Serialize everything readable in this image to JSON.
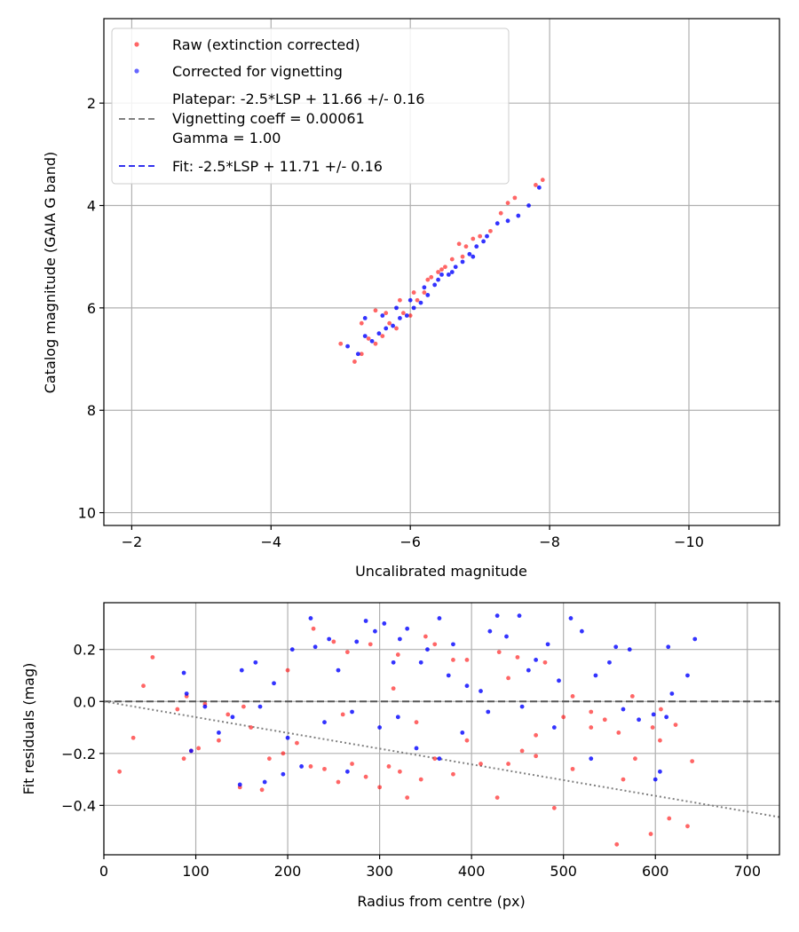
{
  "chart_data": [
    {
      "type": "scatter",
      "title": "",
      "xlabel": "Uncalibrated magnitude",
      "ylabel": "Catalog magnitude (GAIA G band)",
      "xlim": [
        -1.6,
        -11.3
      ],
      "ylim": [
        10.25,
        0.35
      ],
      "x_inverted": true,
      "y_inverted": true,
      "xticks": [
        -2,
        -4,
        -6,
        -8,
        -10
      ],
      "yticks": [
        2,
        4,
        6,
        8,
        10
      ],
      "xtick_labels": [
        "−2",
        "−4",
        "−6",
        "−8",
        "−10"
      ],
      "ytick_labels": [
        "2",
        "4",
        "6",
        "8",
        "10"
      ],
      "grid": true,
      "legend_position": "top-left",
      "legend": {
        "raw": "Raw (extinction corrected)",
        "vig": "Corrected for vignetting",
        "platepar_lines": [
          "Platepar: -2.5*LSP + 11.66 +/- 0.16",
          "Vignetting coeff = 0.00061",
          "Gamma = 1.00"
        ],
        "fit": "Fit: -2.5*LSP + 11.71 +/- 0.16"
      },
      "colors": {
        "raw": "#ff0000",
        "vig": "#0000ff",
        "platepar_line": "#808080",
        "fit_line": "#3333ee"
      },
      "lines": [
        {
          "name": "Platepar: -2.5*LSP + 11.66 +/- 0.16",
          "slope": -1,
          "intercept": -11.66
        },
        {
          "name": "Fit: -2.5*LSP + 11.71 +/- 0.16",
          "slope": -1,
          "intercept": -11.71
        }
      ],
      "series": [
        {
          "name": "Raw (extinction corrected)",
          "points": [
            [
              -5.0,
              6.7
            ],
            [
              -5.2,
              7.05
            ],
            [
              -5.3,
              6.9
            ],
            [
              -5.4,
              6.6
            ],
            [
              -5.5,
              6.7
            ],
            [
              -5.6,
              6.55
            ],
            [
              -5.7,
              6.3
            ],
            [
              -5.8,
              6.4
            ],
            [
              -5.9,
              6.1
            ],
            [
              -6.0,
              6.15
            ],
            [
              -6.1,
              5.85
            ],
            [
              -6.2,
              5.7
            ],
            [
              -6.3,
              5.4
            ],
            [
              -6.4,
              5.3
            ],
            [
              -6.5,
              5.2
            ],
            [
              -6.6,
              5.05
            ],
            [
              -6.7,
              4.75
            ],
            [
              -6.8,
              4.8
            ],
            [
              -6.9,
              4.65
            ],
            [
              -7.0,
              4.6
            ],
            [
              -7.3,
              4.15
            ],
            [
              -7.5,
              3.85
            ],
            [
              -7.8,
              3.6
            ],
            [
              -7.9,
              3.5
            ],
            [
              -5.3,
              6.3
            ],
            [
              -5.5,
              6.05
            ],
            [
              -5.65,
              6.1
            ],
            [
              -5.85,
              5.85
            ],
            [
              -6.05,
              5.7
            ],
            [
              -6.25,
              5.45
            ],
            [
              -6.45,
              5.25
            ],
            [
              -6.75,
              5.0
            ],
            [
              -7.15,
              4.5
            ],
            [
              -7.4,
              3.95
            ]
          ]
        },
        {
          "name": "Corrected for vignetting",
          "points": [
            [
              -5.1,
              6.75
            ],
            [
              -5.25,
              6.9
            ],
            [
              -5.35,
              6.55
            ],
            [
              -5.45,
              6.65
            ],
            [
              -5.55,
              6.5
            ],
            [
              -5.65,
              6.4
            ],
            [
              -5.75,
              6.35
            ],
            [
              -5.85,
              6.2
            ],
            [
              -5.95,
              6.15
            ],
            [
              -6.05,
              6.0
            ],
            [
              -6.15,
              5.9
            ],
            [
              -6.25,
              5.75
            ],
            [
              -6.35,
              5.55
            ],
            [
              -6.45,
              5.35
            ],
            [
              -6.55,
              5.35
            ],
            [
              -6.65,
              5.2
            ],
            [
              -6.75,
              5.1
            ],
            [
              -6.85,
              4.95
            ],
            [
              -6.95,
              4.8
            ],
            [
              -7.05,
              4.7
            ],
            [
              -7.25,
              4.35
            ],
            [
              -7.55,
              4.2
            ],
            [
              -7.7,
              4.0
            ],
            [
              -7.85,
              3.65
            ],
            [
              -5.35,
              6.2
            ],
            [
              -5.6,
              6.15
            ],
            [
              -5.8,
              6.0
            ],
            [
              -6.0,
              5.85
            ],
            [
              -6.2,
              5.6
            ],
            [
              -6.4,
              5.45
            ],
            [
              -6.6,
              5.3
            ],
            [
              -6.9,
              5.0
            ],
            [
              -7.1,
              4.6
            ],
            [
              -7.4,
              4.3
            ]
          ]
        }
      ]
    },
    {
      "type": "scatter",
      "title": "",
      "xlabel": "Radius from centre (px)",
      "ylabel": "Fit residuals (mag)",
      "xlim": [
        0,
        735
      ],
      "ylim": [
        -0.59,
        0.38
      ],
      "xticks": [
        0,
        100,
        200,
        300,
        400,
        500,
        600,
        700
      ],
      "yticks": [
        0.2,
        0.0,
        -0.2,
        -0.4
      ],
      "xtick_labels": [
        "0",
        "100",
        "200",
        "300",
        "400",
        "500",
        "600",
        "700"
      ],
      "ytick_labels": [
        "0.2",
        "0.0",
        "−0.2",
        "−0.4"
      ],
      "grid": true,
      "colors": {
        "raw": "#ff0000",
        "vig": "#0000ff",
        "zero_line": "#555555",
        "trend_line": "#808080"
      },
      "lines": [
        {
          "name": "zero",
          "style": "dashed",
          "points": [
            [
              0,
              0.0
            ],
            [
              735,
              0.0
            ]
          ]
        },
        {
          "name": "vignetting trend",
          "style": "dotted",
          "points": [
            [
              0,
              0.0
            ],
            [
              735,
              -0.445
            ]
          ]
        }
      ],
      "series": [
        {
          "name": "Raw (extinction corrected)",
          "points": [
            [
              17,
              -0.27
            ],
            [
              32,
              -0.14
            ],
            [
              43,
              0.06
            ],
            [
              53,
              0.17
            ],
            [
              80,
              -0.03
            ],
            [
              87,
              -0.22
            ],
            [
              90,
              0.02
            ],
            [
              95,
              -0.19
            ],
            [
              103,
              -0.18
            ],
            [
              110,
              -0.01
            ],
            [
              125,
              -0.15
            ],
            [
              135,
              -0.05
            ],
            [
              148,
              -0.33
            ],
            [
              152,
              -0.02
            ],
            [
              160,
              -0.1
            ],
            [
              172,
              -0.34
            ],
            [
              180,
              -0.22
            ],
            [
              195,
              -0.2
            ],
            [
              210,
              -0.16
            ],
            [
              225,
              -0.25
            ],
            [
              240,
              -0.26
            ],
            [
              255,
              -0.31
            ],
            [
              270,
              -0.24
            ],
            [
              285,
              -0.29
            ],
            [
              300,
              -0.33
            ],
            [
              310,
              -0.25
            ],
            [
              322,
              -0.27
            ],
            [
              330,
              -0.37
            ],
            [
              345,
              -0.3
            ],
            [
              360,
              -0.22
            ],
            [
              380,
              -0.28
            ],
            [
              395,
              -0.15
            ],
            [
              410,
              -0.24
            ],
            [
              428,
              -0.37
            ],
            [
              440,
              -0.24
            ],
            [
              455,
              -0.19
            ],
            [
              470,
              -0.21
            ],
            [
              490,
              -0.41
            ],
            [
              510,
              -0.26
            ],
            [
              530,
              -0.1
            ],
            [
              545,
              -0.07
            ],
            [
              558,
              -0.55
            ],
            [
              565,
              -0.3
            ],
            [
              578,
              -0.22
            ],
            [
              595,
              -0.51
            ],
            [
              605,
              -0.15
            ],
            [
              615,
              -0.45
            ],
            [
              635,
              -0.48
            ],
            [
              640,
              -0.23
            ],
            [
              228,
              0.28
            ],
            [
              250,
              0.23
            ],
            [
              265,
              0.19
            ],
            [
              290,
              0.22
            ],
            [
              320,
              0.18
            ],
            [
              350,
              0.25
            ],
            [
              360,
              0.22
            ],
            [
              395,
              0.16
            ],
            [
              430,
              0.19
            ],
            [
              450,
              0.17
            ],
            [
              480,
              0.15
            ],
            [
              510,
              0.02
            ],
            [
              530,
              -0.04
            ],
            [
              575,
              0.02
            ],
            [
              597,
              -0.1
            ],
            [
              622,
              -0.09
            ],
            [
              380,
              0.16
            ],
            [
              200,
              0.12
            ],
            [
              315,
              0.05
            ],
            [
              440,
              0.09
            ],
            [
              500,
              -0.06
            ],
            [
              560,
              -0.12
            ],
            [
              606,
              -0.03
            ],
            [
              260,
              -0.05
            ],
            [
              340,
              -0.08
            ],
            [
              470,
              -0.13
            ]
          ]
        },
        {
          "name": "Corrected for vignetting",
          "points": [
            [
              87,
              0.11
            ],
            [
              90,
              0.03
            ],
            [
              95,
              -0.19
            ],
            [
              110,
              -0.02
            ],
            [
              125,
              -0.12
            ],
            [
              140,
              -0.06
            ],
            [
              148,
              -0.32
            ],
            [
              150,
              0.12
            ],
            [
              165,
              0.15
            ],
            [
              175,
              -0.31
            ],
            [
              185,
              0.07
            ],
            [
              195,
              -0.28
            ],
            [
              205,
              0.2
            ],
            [
              215,
              -0.25
            ],
            [
              225,
              0.32
            ],
            [
              230,
              0.21
            ],
            [
              245,
              0.24
            ],
            [
              255,
              0.12
            ],
            [
              265,
              -0.27
            ],
            [
              275,
              0.23
            ],
            [
              285,
              0.31
            ],
            [
              295,
              0.27
            ],
            [
              305,
              0.3
            ],
            [
              315,
              0.15
            ],
            [
              322,
              0.24
            ],
            [
              330,
              0.28
            ],
            [
              345,
              0.15
            ],
            [
              352,
              0.2
            ],
            [
              365,
              0.32
            ],
            [
              375,
              0.1
            ],
            [
              380,
              0.22
            ],
            [
              395,
              0.06
            ],
            [
              410,
              0.04
            ],
            [
              420,
              0.27
            ],
            [
              428,
              0.33
            ],
            [
              438,
              0.25
            ],
            [
              452,
              0.33
            ],
            [
              462,
              0.12
            ],
            [
              470,
              0.16
            ],
            [
              483,
              0.22
            ],
            [
              495,
              0.08
            ],
            [
              508,
              0.32
            ],
            [
              520,
              0.27
            ],
            [
              535,
              0.1
            ],
            [
              550,
              0.15
            ],
            [
              557,
              0.21
            ],
            [
              572,
              0.2
            ],
            [
              582,
              -0.07
            ],
            [
              598,
              -0.05
            ],
            [
              605,
              -0.27
            ],
            [
              614,
              0.21
            ],
            [
              618,
              0.03
            ],
            [
              635,
              0.1
            ],
            [
              643,
              0.24
            ],
            [
              200,
              -0.14
            ],
            [
              240,
              -0.08
            ],
            [
              300,
              -0.1
            ],
            [
              340,
              -0.18
            ],
            [
              365,
              -0.22
            ],
            [
              390,
              -0.12
            ],
            [
              418,
              -0.04
            ],
            [
              455,
              -0.02
            ],
            [
              490,
              -0.1
            ],
            [
              530,
              -0.22
            ],
            [
              565,
              -0.03
            ],
            [
              600,
              -0.3
            ],
            [
              612,
              -0.06
            ],
            [
              170,
              -0.02
            ],
            [
              270,
              -0.04
            ],
            [
              320,
              -0.06
            ]
          ]
        }
      ]
    }
  ]
}
